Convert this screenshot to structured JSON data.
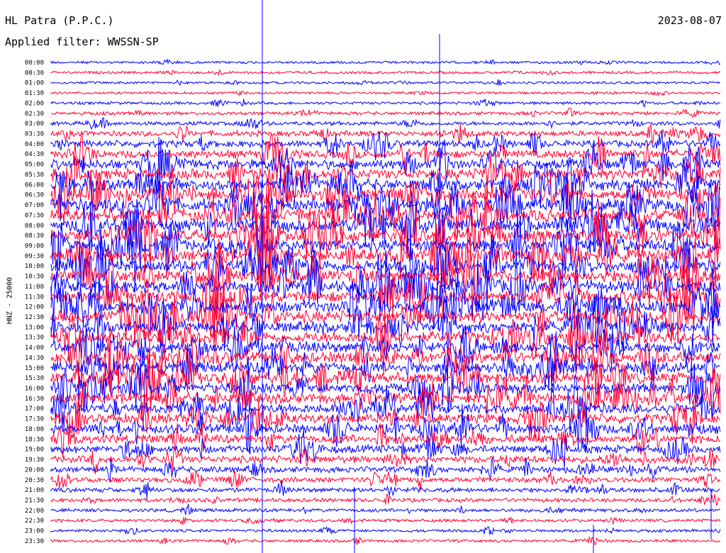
{
  "header": {
    "station": "HL Patra (P.P.C.)",
    "date": "2023-08-07",
    "filter": "Applied filter: WWSSN-SP"
  },
  "chart_data": {
    "type": "line",
    "title": "HL Patra (P.P.C.)",
    "ylabel": "HNZ - 25000",
    "categories": [
      "00:00",
      "00:30",
      "01:00",
      "01:30",
      "02:00",
      "02:30",
      "03:00",
      "03:30",
      "04:00",
      "04:30",
      "05:00",
      "05:30",
      "06:00",
      "06:30",
      "07:00",
      "07:30",
      "08:00",
      "08:30",
      "09:00",
      "09:30",
      "10:00",
      "10:30",
      "11:00",
      "11:30",
      "12:00",
      "12:30",
      "13:00",
      "13:30",
      "14:00",
      "14:30",
      "15:00",
      "15:30",
      "16:00",
      "16:30",
      "17:00",
      "17:30",
      "18:00",
      "18:30",
      "19:00",
      "19:30",
      "20:00",
      "20:30",
      "21:00",
      "21:30",
      "22:00",
      "22:30",
      "23:00",
      "23:30"
    ],
    "series_colors": [
      "#0000ff",
      "#ff0033"
    ],
    "noise_level": [
      0.08,
      0.08,
      0.07,
      0.07,
      0.1,
      0.14,
      0.18,
      0.28,
      0.38,
      0.48,
      0.58,
      0.65,
      0.7,
      0.75,
      0.78,
      0.8,
      0.8,
      0.8,
      0.78,
      0.78,
      0.78,
      0.78,
      0.78,
      0.76,
      0.76,
      0.74,
      0.72,
      0.72,
      0.7,
      0.7,
      0.7,
      0.68,
      0.66,
      0.64,
      0.62,
      0.58,
      0.55,
      0.5,
      0.45,
      0.4,
      0.32,
      0.28,
      0.22,
      0.18,
      0.15,
      0.12,
      0.1,
      0.1
    ]
  }
}
